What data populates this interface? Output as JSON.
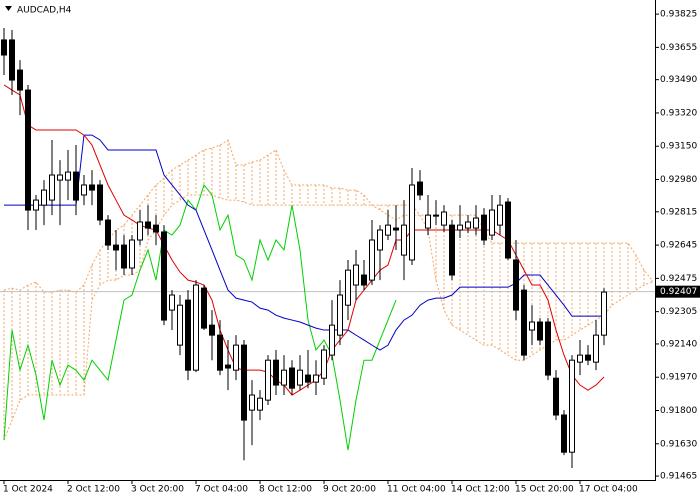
{
  "chart_data": {
    "type": "candlestick",
    "title": "AUDCAD,H4",
    "categories": [
      "1 Oct 2024",
      null,
      null,
      null,
      null,
      null,
      null,
      null,
      "2 Oct 12:00",
      null,
      null,
      null,
      null,
      null,
      null,
      null,
      "3 Oct 20:00",
      null,
      null,
      null,
      null,
      null,
      null,
      null,
      "7 Oct 04:00",
      null,
      null,
      null,
      null,
      null,
      null,
      null,
      "8 Oct 12:00",
      null,
      null,
      null,
      null,
      null,
      null,
      null,
      "9 Oct 20:00",
      null,
      null,
      null,
      null,
      null,
      null,
      null,
      "11 Oct 04:00",
      null,
      null,
      null,
      null,
      null,
      null,
      null,
      "14 Oct 12:00",
      null,
      null,
      null,
      null,
      null,
      null,
      null,
      "15 Oct 20:00",
      null,
      null,
      null,
      null,
      null,
      null,
      null,
      "17 Oct 04:00",
      null,
      null,
      null,
      null,
      null,
      null,
      null,
      null,
      null
    ],
    "open": [
      0.93693,
      0.93693,
      0.93539,
      0.93437,
      0.92824,
      0.92849,
      0.92875,
      0.92977,
      0.92977,
      0.93018,
      0.92901,
      0.92952,
      0.92952,
      0.92773,
      0.92645,
      0.92645,
      0.92528,
      0.92671,
      0.92763,
      0.92747,
      0.92712,
      0.92313,
      0.92134,
      0.92364,
      0.92006,
      0.92425,
      0.92236,
      0.92185,
      0.92032,
      0.92006,
      0.92134,
      0.91802,
      0.91802,
      0.91853,
      0.92057,
      0.9193,
      0.92017,
      0.9193,
      0.91981,
      0.91945,
      0.91965,
      0.92083,
      0.92185,
      0.92338,
      0.92441,
      0.92492,
      0.92466,
      0.9262,
      0.92696,
      0.92732,
      0.92594,
      0.92569,
      0.92967,
      0.92732,
      0.92798,
      0.92747,
      0.92747,
      0.92722,
      0.92732,
      0.92732,
      0.92798,
      0.92696,
      0.92747,
      0.92865,
      0.92569,
      0.92415,
      0.92211,
      0.92252,
      0.92252,
      0.91965,
      0.91777,
      0.91587,
      0.92047,
      0.92083,
      0.92047,
      0.92185,
      null,
      null,
      null,
      null,
      null,
      null
    ],
    "high": [
      0.93754,
      0.93744,
      0.9359,
      0.93463,
      0.92901,
      0.92977,
      0.93182,
      0.93079,
      0.93131,
      0.93156,
      0.93003,
      0.93028,
      0.92977,
      0.92798,
      0.92722,
      0.92696,
      0.92696,
      0.92824,
      0.92849,
      0.92798,
      0.92747,
      0.92415,
      0.9239,
      0.92415,
      0.92466,
      0.92441,
      0.92313,
      0.92262,
      0.9216,
      0.92185,
      0.9216,
      0.91955,
      0.91904,
      0.92083,
      0.92109,
      0.92083,
      0.92057,
      0.92083,
      0.92109,
      0.92057,
      0.92134,
      0.92364,
      0.92466,
      0.92569,
      0.9262,
      0.92569,
      0.92773,
      0.92747,
      0.92824,
      0.92849,
      0.92875,
      0.93039,
      0.93028,
      0.92901,
      0.92875,
      0.92849,
      0.92773,
      0.92849,
      0.92798,
      0.92849,
      0.92834,
      0.92901,
      0.92901,
      0.92885,
      0.92671,
      0.92441,
      0.92338,
      0.92272,
      0.92272,
      0.92006,
      0.91802,
      0.92083,
      0.9216,
      0.92134,
      0.92262,
      0.92425,
      null,
      null,
      null,
      null,
      null,
      null
    ],
    "low": [
      0.93514,
      0.93412,
      0.93309,
      0.92722,
      0.92722,
      0.92747,
      0.92798,
      0.92747,
      0.92875,
      0.92798,
      0.92849,
      0.92849,
      0.92747,
      0.9262,
      0.92517,
      0.92492,
      0.92492,
      0.92645,
      0.92696,
      0.92645,
      0.92236,
      0.92211,
      0.92083,
      0.91955,
      0.91996,
      0.92211,
      0.92057,
      0.91981,
      0.91904,
      0.91955,
      0.91546,
      0.91623,
      0.91751,
      0.91828,
      0.91879,
      0.91879,
      0.91879,
      0.91904,
      0.91914,
      0.91879,
      0.9193,
      0.92057,
      0.92134,
      0.92262,
      0.92364,
      0.92415,
      0.92441,
      0.92466,
      0.92671,
      0.9262,
      0.92466,
      0.92543,
      0.92875,
      0.92696,
      0.92747,
      0.92712,
      0.92466,
      0.92681,
      0.92706,
      0.92696,
      0.92645,
      0.92671,
      0.92696,
      0.92569,
      0.92262,
      0.92057,
      0.92134,
      0.92134,
      0.91955,
      0.91751,
      0.91572,
      0.91506,
      0.91981,
      0.92032,
      0.92006,
      0.92134,
      null,
      null,
      null,
      null,
      null,
      null
    ],
    "close": [
      0.93616,
      0.93488,
      0.93437,
      0.92824,
      0.92875,
      0.92926,
      0.93003,
      0.93003,
      0.93018,
      0.92875,
      0.92952,
      0.92926,
      0.92773,
      0.92645,
      0.9262,
      0.92528,
      0.92671,
      0.92763,
      0.92732,
      0.92712,
      0.92262,
      0.9239,
      0.92338,
      0.92006,
      0.92441,
      0.92221,
      0.92185,
      0.92006,
      0.92017,
      0.92134,
      0.91751,
      0.91879,
      0.91863,
      0.92057,
      0.9193,
      0.92006,
      0.91914,
      0.92006,
      0.91945,
      0.91981,
      0.92109,
      0.92236,
      0.9239,
      0.92517,
      0.92543,
      0.92441,
      0.92671,
      0.92722,
      0.92747,
      0.92722,
      0.92747,
      0.92952,
      0.92901,
      0.92798,
      0.92798,
      0.92814,
      0.92492,
      0.92747,
      0.92763,
      0.92783,
      0.92671,
      0.92824,
      0.92849,
      0.92579,
      0.92313,
      0.92083,
      0.92252,
      0.9216,
      0.91981,
      0.91777,
      0.91587,
      0.92057,
      0.92083,
      0.92057,
      0.92185,
      0.92405,
      null,
      null,
      null,
      null,
      null,
      null
    ],
    "bull_color": "#ffffff",
    "bear_color": "#000000",
    "candle_outline": "#000000",
    "series": [
      {
        "color": "#00d000",
        "values": [
          0.91649,
          0.92211,
          0.92006,
          0.92134,
          0.91981,
          0.91751,
          0.92057,
          0.9193,
          0.92032,
          0.92006,
          0.91955,
          0.92057,
          0.92006,
          0.91955,
          0.9216,
          0.92364,
          0.9239,
          0.92517,
          0.9262,
          0.92466,
          0.92722,
          0.92696,
          0.92747,
          0.92875,
          0.92824,
          0.92952,
          0.92901,
          0.92722,
          0.92798,
          0.92594,
          0.92569,
          0.92466,
          0.92671,
          0.92569,
          0.92671,
          0.9262,
          0.92849,
          0.9262,
          0.92262,
          0.92109,
          0.9216,
          0.92083,
          0.91853,
          0.91598,
          0.91853,
          0.92057,
          0.92057,
          0.9216,
          0.92262,
          0.92364,
          null,
          null,
          null,
          null,
          null,
          null,
          null,
          null,
          null,
          null,
          null,
          null,
          null,
          null,
          null,
          null,
          null,
          null,
          null,
          null,
          null,
          null,
          null,
          null,
          null,
          null,
          null,
          null,
          null,
          null,
          null,
          null
        ]
      },
      {
        "color": "#0000c8",
        "values": [
          0.92849,
          0.92849,
          0.92849,
          0.92849,
          0.92849,
          0.92849,
          0.92849,
          0.92849,
          0.92849,
          0.92849,
          0.93207,
          0.93207,
          0.93182,
          0.93131,
          0.93131,
          0.93131,
          0.93131,
          0.93131,
          0.93131,
          0.93131,
          0.93003,
          0.92952,
          0.92901,
          0.92849,
          0.92824,
          0.92722,
          0.9262,
          0.92517,
          0.92415,
          0.92374,
          0.92364,
          0.92354,
          0.92323,
          0.92313,
          0.92287,
          0.92272,
          0.92262,
          0.92252,
          0.92236,
          0.92221,
          0.92211,
          0.92211,
          0.92211,
          0.92211,
          0.92185,
          0.9216,
          0.92134,
          0.92109,
          0.92134,
          0.92211,
          0.92262,
          0.92287,
          0.92338,
          0.92364,
          0.92374,
          0.92374,
          0.9239,
          0.9243,
          0.9243,
          0.9243,
          0.9243,
          0.9243,
          0.9243,
          0.9243,
          0.92451,
          0.92492,
          0.92492,
          0.92492,
          0.92441,
          0.9239,
          0.92338,
          0.92282,
          0.92282,
          0.92282,
          0.92282,
          0.92282,
          null,
          null,
          null,
          null,
          null,
          null
        ]
      },
      {
        "color": "#e00000",
        "values": [
          0.93463,
          0.93437,
          0.93412,
          0.93258,
          0.93233,
          0.93233,
          0.93233,
          0.93233,
          0.93233,
          0.93233,
          0.93207,
          0.93156,
          0.93054,
          0.92952,
          0.92875,
          0.92798,
          0.92773,
          0.92747,
          0.92732,
          0.92722,
          0.92645,
          0.92569,
          0.92507,
          0.92466,
          0.92456,
          0.92441,
          0.92364,
          0.92211,
          0.92109,
          0.92017,
          0.92006,
          0.92006,
          0.92006,
          0.91996,
          0.91955,
          0.9193,
          0.91879,
          0.91904,
          0.9193,
          0.91955,
          0.92006,
          0.92109,
          0.9216,
          0.92211,
          0.92364,
          0.92415,
          0.92466,
          0.92517,
          0.92543,
          0.92671,
          0.92671,
          0.92722,
          0.92722,
          0.92722,
          0.92722,
          0.92722,
          0.92722,
          0.92722,
          0.92722,
          0.92722,
          0.92722,
          0.92722,
          0.92696,
          0.92671,
          0.92594,
          0.92517,
          0.92441,
          0.92441,
          0.92364,
          0.92211,
          0.92083,
          0.91981,
          0.9193,
          0.91904,
          0.9193,
          0.91971,
          null,
          null,
          null,
          null,
          null,
          null
        ]
      }
    ],
    "cloud": {
      "color": "#f4a460",
      "span_a": [
        0.92415,
        0.92425,
        0.92415,
        0.92441,
        0.92456,
        0.92405,
        0.92405,
        0.92415,
        0.92415,
        0.92405,
        0.92441,
        0.92543,
        0.9262,
        0.92671,
        0.92722,
        0.92747,
        0.92798,
        0.92849,
        0.92901,
        0.92952,
        0.92987,
        0.93028,
        0.93054,
        0.93079,
        0.93105,
        0.93131,
        0.93141,
        0.93156,
        0.93182,
        0.93054,
        0.93054,
        0.93069,
        0.93079,
        0.93105,
        0.93131,
        0.93028,
        0.92952,
        0.92952,
        0.92952,
        0.92952,
        0.92952,
        0.92936,
        0.92936,
        0.92926,
        0.92926,
        0.92901,
        0.92849,
        0.92824,
        0.92798,
        0.92773,
        0.92798,
        0.92798,
        0.92798,
        0.92798,
        0.92798,
        0.92798,
        0.92798,
        0.92798,
        0.92798,
        0.92798,
        0.92722,
        0.92655,
        0.92655,
        0.92655,
        0.92655,
        0.92655,
        0.92655,
        0.92655,
        0.92655,
        0.92655,
        0.92655,
        0.92655,
        0.92655,
        0.92655,
        0.92655,
        0.92655,
        0.92655,
        0.92655,
        0.92655,
        0.92594,
        0.92517,
        0.92466
      ],
      "span_b": [
        0.91649,
        0.91751,
        0.91853,
        0.91879,
        0.91879,
        0.91879,
        0.91879,
        0.91879,
        0.91879,
        0.91879,
        0.91879,
        0.92364,
        0.92441,
        0.92466,
        0.92466,
        0.92492,
        0.92492,
        0.92517,
        0.92671,
        0.92722,
        0.92798,
        0.92849,
        0.92875,
        0.92901,
        0.92901,
        0.92901,
        0.92901,
        0.92885,
        0.92875,
        0.92875,
        0.92865,
        0.92849,
        0.92849,
        0.92849,
        0.92849,
        0.92849,
        0.92849,
        0.92849,
        0.92849,
        0.92849,
        0.92849,
        0.92849,
        0.92849,
        0.92849,
        0.92849,
        0.92849,
        0.92849,
        0.92849,
        0.92849,
        0.92849,
        0.92849,
        0.92849,
        0.92798,
        0.92722,
        0.92466,
        0.92313,
        0.92236,
        0.92211,
        0.92185,
        0.9216,
        0.92134,
        0.92134,
        0.92109,
        0.92083,
        0.92057,
        0.92057,
        0.92083,
        0.92109,
        0.92134,
        0.9216,
        0.9216,
        0.92185,
        0.92211,
        0.92236,
        0.92262,
        0.92287,
        0.92338,
        0.92364,
        0.9239,
        0.92415,
        0.92441,
        0.92456
      ]
    },
    "current_price": 0.92407,
    "current_price_color": "#c0c0c0",
    "ylim": [
      0.91445,
      0.93897
    ],
    "yticks": [
      {
        "value": 0.93825,
        "label": "0.93825"
      },
      {
        "value": 0.93655,
        "label": "0.93655"
      },
      {
        "value": 0.9349,
        "label": "0.93490"
      },
      {
        "value": 0.9332,
        "label": "0.93320"
      },
      {
        "value": 0.9315,
        "label": "0.93150"
      },
      {
        "value": 0.9298,
        "label": "0.92980"
      },
      {
        "value": 0.92815,
        "label": "0.92815"
      },
      {
        "value": 0.92645,
        "label": "0.92645"
      },
      {
        "value": 0.92475,
        "label": "0.92475"
      },
      {
        "value": 0.92305,
        "label": "0.92305"
      },
      {
        "value": 0.9214,
        "label": "0.92140"
      },
      {
        "value": 0.9197,
        "label": "0.91970"
      },
      {
        "value": 0.918,
        "label": "0.91800"
      },
      {
        "value": 0.9163,
        "label": "0.91630"
      },
      {
        "value": 0.91465,
        "label": "0.91465"
      }
    ]
  }
}
